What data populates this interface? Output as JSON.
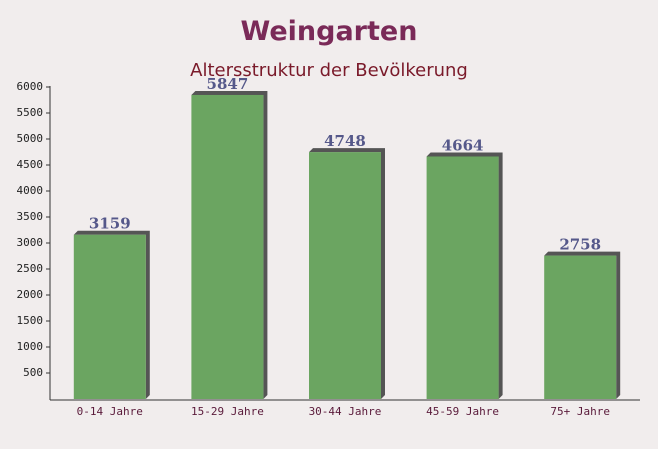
{
  "chart_data": {
    "type": "bar",
    "title": "Weingarten",
    "subtitle": "Altersstruktur der Bevölkerung",
    "categories": [
      "0-14 Jahre",
      "15-29 Jahre",
      "30-44 Jahre",
      "45-59 Jahre",
      "75+ Jahre"
    ],
    "values": [
      3159,
      5847,
      4748,
      4664,
      2758
    ],
    "color": "#5f9e55",
    "ylim": [
      0,
      6000
    ],
    "yticks": [
      500,
      1000,
      1500,
      2000,
      2500,
      3000,
      3500,
      4000,
      4500,
      5000,
      5500,
      6000
    ]
  }
}
